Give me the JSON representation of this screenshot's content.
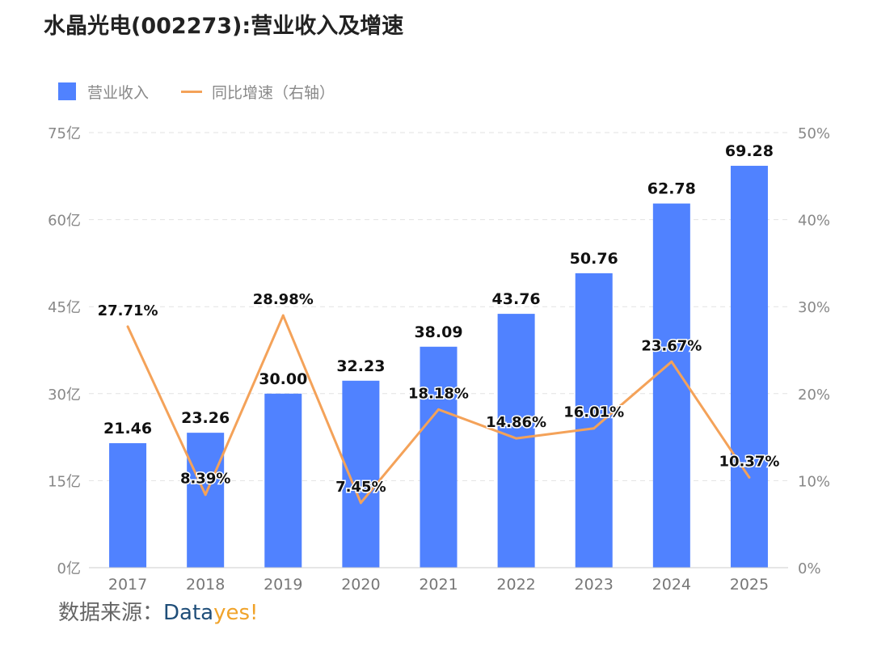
{
  "title": "水晶光电(002273):营业收入及增速",
  "legend": {
    "bar_label": "营业收入",
    "line_label": "同比增速（右轴）"
  },
  "colors": {
    "bar": "#5082ff",
    "line": "#f4a259",
    "grid": "#e2e2e2",
    "axis_text": "#888888"
  },
  "source": {
    "prefix": "数据来源：",
    "brand_part1": "Data",
    "brand_part2": "yes!"
  },
  "chart_data": {
    "type": "bar+line",
    "categories": [
      "2017",
      "2018",
      "2019",
      "2020",
      "2021",
      "2022",
      "2023",
      "2024",
      "2025"
    ],
    "series": [
      {
        "name": "营业收入",
        "type": "bar",
        "axis": "left",
        "values": [
          21.46,
          23.26,
          30.0,
          32.23,
          38.09,
          43.76,
          50.76,
          62.78,
          69.28
        ],
        "labels": [
          "21.46",
          "23.26",
          "30.00",
          "32.23",
          "38.09",
          "43.76",
          "50.76",
          "62.78",
          "69.28"
        ]
      },
      {
        "name": "同比增速（右轴）",
        "type": "line",
        "axis": "right",
        "values": [
          27.71,
          8.39,
          28.98,
          7.45,
          18.18,
          14.86,
          16.01,
          23.67,
          10.37
        ],
        "labels": [
          "27.71%",
          "8.39%",
          "28.98%",
          "7.45%",
          "18.18%",
          "14.86%",
          "16.01%",
          "23.67%",
          "10.37%"
        ]
      }
    ],
    "y_left": {
      "min": 0,
      "max": 75,
      "ticks": [
        0,
        15,
        30,
        45,
        60,
        75
      ],
      "tick_labels": [
        "0亿",
        "15亿",
        "30亿",
        "45亿",
        "60亿",
        "75亿"
      ]
    },
    "y_right": {
      "min": 0,
      "max": 50,
      "ticks": [
        0,
        10,
        20,
        30,
        40,
        50
      ],
      "tick_labels": [
        "0%",
        "10%",
        "20%",
        "30%",
        "40%",
        "50%"
      ]
    },
    "grid": true,
    "legend_position": "top-left"
  }
}
